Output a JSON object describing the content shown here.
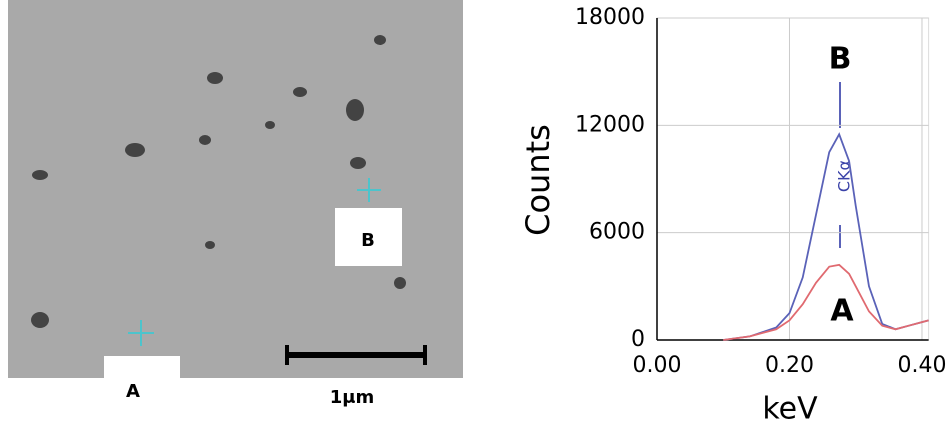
{
  "image": {
    "point_labels": [
      "A",
      "B"
    ],
    "scale_bar": "1μm"
  },
  "chart_data": {
    "type": "line",
    "xlabel": "keV",
    "ylabel": "Counts",
    "annotations": [
      "B",
      "A",
      "CKα"
    ],
    "x": [
      0.1,
      0.14,
      0.18,
      0.2,
      0.22,
      0.24,
      0.26,
      0.275,
      0.29,
      0.3,
      0.32,
      0.34,
      0.36,
      0.38,
      0.4,
      0.41
    ],
    "series": [
      {
        "name": "B",
        "color": "#5a62b8",
        "values": [
          0,
          200,
          700,
          1500,
          3500,
          7000,
          10500,
          11500,
          10000,
          7500,
          3000,
          900,
          600,
          800,
          1000,
          1100
        ]
      },
      {
        "name": "A",
        "color": "#e06a70",
        "values": [
          0,
          200,
          600,
          1100,
          2000,
          3200,
          4100,
          4200,
          3700,
          3000,
          1600,
          800,
          600,
          800,
          1000,
          1100
        ]
      }
    ],
    "xlim": [
      0,
      0.41
    ],
    "xticks": [
      {
        "value": 0,
        "label": "0.00"
      },
      {
        "value": 0.2,
        "label": "0.20"
      },
      {
        "value": 0.4,
        "label": "0.40"
      }
    ],
    "ylim": [
      0,
      18000
    ],
    "yticks": [
      0,
      6000,
      12000,
      18000
    ],
    "grid": true
  }
}
